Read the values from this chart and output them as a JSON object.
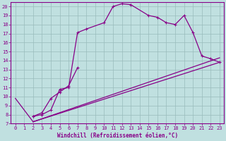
{
  "xlabel": "Windchill (Refroidissement éolien,°C)",
  "background_color": "#c0e0e0",
  "line_color": "#880088",
  "grid_color": "#99bbbb",
  "xlim": [
    -0.5,
    23.5
  ],
  "ylim": [
    7,
    20.5
  ],
  "xticks": [
    0,
    1,
    2,
    3,
    4,
    5,
    6,
    7,
    8,
    9,
    10,
    11,
    12,
    13,
    14,
    15,
    16,
    17,
    18,
    19,
    20,
    21,
    22,
    23
  ],
  "yticks": [
    7,
    8,
    9,
    10,
    11,
    12,
    13,
    14,
    15,
    16,
    17,
    18,
    19,
    20
  ],
  "curve1_x": [
    0,
    2
  ],
  "curve1_y": [
    9.8,
    7.2
  ],
  "curve2_x": [
    2,
    23
  ],
  "curve2_y": [
    7.2,
    13.8
  ],
  "curve3_x": [
    2,
    23
  ],
  "curve3_y": [
    7.2,
    14.3
  ],
  "curve4_x": [
    2,
    3,
    4,
    5,
    6,
    7,
    8,
    10,
    11,
    12,
    13,
    15,
    16,
    17,
    18,
    19,
    20,
    21,
    22,
    23
  ],
  "curve4_y": [
    7.8,
    8.0,
    8.5,
    10.8,
    11.0,
    17.1,
    17.5,
    18.2,
    20.0,
    20.3,
    20.2,
    19.0,
    18.8,
    18.2,
    18.0,
    19.0,
    17.1,
    14.5,
    14.2,
    13.8
  ],
  "curve5_x": [
    2,
    3,
    4,
    5,
    6,
    7
  ],
  "curve5_y": [
    7.8,
    8.2,
    9.8,
    10.5,
    11.2,
    13.2
  ]
}
